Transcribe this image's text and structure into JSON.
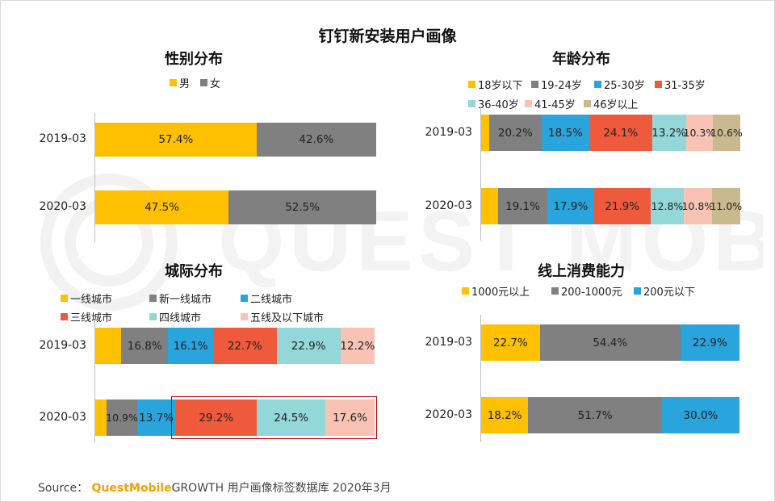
{
  "title": "钉钉新安装用户画像",
  "watermark": "QUEST MOBILE",
  "source": {
    "prefix": "Source：",
    "brand": "QuestMobile",
    "rest": "GROWTH 用户画像标签数据库 2020年3月"
  },
  "colors": {
    "yellow": "#ffc000",
    "gray": "#808080",
    "blue": "#2aa4dc",
    "red": "#f05a3c",
    "teal": "#93d7d8",
    "pink": "#f8c3b4",
    "khaki": "#c9b98f"
  },
  "chart_data": [
    {
      "id": "gender",
      "type": "bar",
      "stacked": true,
      "orientation": "horizontal",
      "title": "性别分布",
      "categories": [
        "2019-03",
        "2020-03"
      ],
      "series": [
        {
          "name": "男",
          "color": "#ffc000",
          "values": [
            57.4,
            47.5
          ],
          "labels": [
            "57.4%",
            "47.5%"
          ]
        },
        {
          "name": "女",
          "color": "#808080",
          "values": [
            42.6,
            52.5
          ],
          "labels": [
            "42.6%",
            "52.5%"
          ]
        }
      ]
    },
    {
      "id": "age",
      "type": "bar",
      "stacked": true,
      "orientation": "horizontal",
      "title": "年龄分布",
      "categories": [
        "2019-03",
        "2020-03"
      ],
      "series": [
        {
          "name": "18岁以下",
          "color": "#ffc000",
          "values": [
            3.1,
            6.5
          ],
          "labels": [
            "",
            ""
          ]
        },
        {
          "name": "19-24岁",
          "color": "#808080",
          "values": [
            20.2,
            19.1
          ],
          "labels": [
            "20.2%",
            "19.1%"
          ]
        },
        {
          "name": "25-30岁",
          "color": "#2aa4dc",
          "values": [
            18.5,
            17.9
          ],
          "labels": [
            "18.5%",
            "17.9%"
          ]
        },
        {
          "name": "31-35岁",
          "color": "#f05a3c",
          "values": [
            24.1,
            21.9
          ],
          "labels": [
            "24.1%",
            "21.9%"
          ]
        },
        {
          "name": "36-40岁",
          "color": "#93d7d8",
          "values": [
            13.2,
            12.8
          ],
          "labels": [
            "13.2%",
            "12.8%"
          ]
        },
        {
          "name": "41-45岁",
          "color": "#f8c3b4",
          "values": [
            10.3,
            10.8
          ],
          "labels": [
            "10.3%",
            "10.8%"
          ]
        },
        {
          "name": "46岁以上",
          "color": "#c9b98f",
          "values": [
            10.6,
            11.0
          ],
          "labels": [
            "10.6%",
            "11.0%"
          ]
        }
      ]
    },
    {
      "id": "city",
      "type": "bar",
      "stacked": true,
      "orientation": "horizontal",
      "title": "城际分布",
      "categories": [
        "2019-03",
        "2020-03"
      ],
      "highlight_row": 1,
      "series": [
        {
          "name": "一线城市",
          "color": "#ffc000",
          "values": [
            9.3,
            4.1
          ],
          "labels": [
            "",
            ""
          ]
        },
        {
          "name": "新一线城市",
          "color": "#808080",
          "values": [
            16.8,
            10.9
          ],
          "labels": [
            "16.8%",
            "10.9%"
          ]
        },
        {
          "name": "二线城市",
          "color": "#2aa4dc",
          "values": [
            16.1,
            13.7
          ],
          "labels": [
            "16.1%",
            "13.7%"
          ]
        },
        {
          "name": "三线城市",
          "color": "#f05a3c",
          "values": [
            22.7,
            29.2
          ],
          "labels": [
            "22.7%",
            "29.2%"
          ]
        },
        {
          "name": "四线城市",
          "color": "#93d7d8",
          "values": [
            22.9,
            24.5
          ],
          "labels": [
            "22.9%",
            "24.5%"
          ]
        },
        {
          "name": "五线及以下城市",
          "color": "#f8c3b4",
          "values": [
            12.2,
            17.6
          ],
          "labels": [
            "12.2%",
            "17.6%"
          ]
        }
      ]
    },
    {
      "id": "spend",
      "type": "bar",
      "stacked": true,
      "orientation": "horizontal",
      "title": "线上消费能力",
      "categories": [
        "2019-03",
        "2020-03"
      ],
      "series": [
        {
          "name": "1000元以上",
          "color": "#ffc000",
          "values": [
            22.7,
            18.2
          ],
          "labels": [
            "22.7%",
            "18.2%"
          ]
        },
        {
          "name": "200-1000元",
          "color": "#808080",
          "values": [
            54.4,
            51.7
          ],
          "labels": [
            "54.4%",
            "51.7%"
          ]
        },
        {
          "name": "200元以下",
          "color": "#2aa4dc",
          "values": [
            22.9,
            30.0
          ],
          "labels": [
            "22.9%",
            "30.0%"
          ]
        }
      ]
    }
  ]
}
